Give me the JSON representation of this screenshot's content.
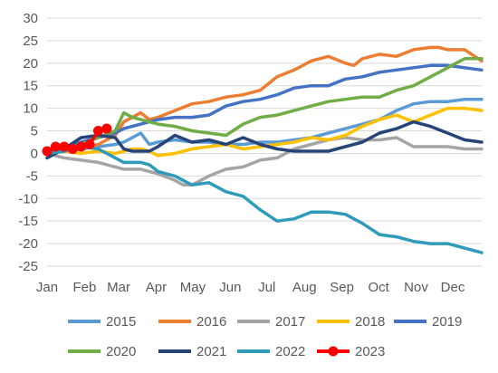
{
  "chart_data": {
    "type": "line",
    "title": "",
    "xlabel": "",
    "ylabel": "",
    "ylim": [
      -25,
      30
    ],
    "yticks": [
      -25,
      -20,
      -15,
      -10,
      -5,
      0,
      5,
      10,
      15,
      20,
      25,
      30
    ],
    "xlim": [
      1,
      52
    ],
    "xticks": [
      {
        "label": "Jan",
        "week": 1
      },
      {
        "label": "Feb",
        "week": 5.4
      },
      {
        "label": "Mar",
        "week": 9.4
      },
      {
        "label": "Apr",
        "week": 13.8
      },
      {
        "label": "May",
        "week": 18.1
      },
      {
        "label": "Jun",
        "week": 22.5
      },
      {
        "label": "Jul",
        "week": 26.8
      },
      {
        "label": "Aug",
        "week": 31.2
      },
      {
        "label": "Sep",
        "week": 35.6
      },
      {
        "label": "Oct",
        "week": 39.9
      },
      {
        "label": "Nov",
        "week": 44.3
      },
      {
        "label": "Dec",
        "week": 48.6
      }
    ],
    "grid": "horizontal",
    "legend_position": "bottom",
    "series": [
      {
        "name": "2015",
        "color": "#5B9BD5",
        "markers": false,
        "x": [
          1,
          3,
          5,
          7,
          9,
          10,
          11,
          12,
          13,
          14,
          16,
          18,
          20,
          22,
          24,
          26,
          28,
          30,
          32,
          34,
          36,
          38,
          40,
          42,
          44,
          46,
          48,
          50,
          52
        ],
        "y": [
          0,
          0.5,
          1,
          1.5,
          2,
          2.5,
          3.5,
          4.5,
          2,
          2.5,
          3,
          2.5,
          2.5,
          2,
          2,
          2.5,
          2.5,
          3,
          3.5,
          4.5,
          5.5,
          6.5,
          7.5,
          9.5,
          11,
          11.5,
          11.5,
          12,
          12
        ]
      },
      {
        "name": "2016",
        "color": "#ED7D31",
        "markers": false,
        "x": [
          1,
          3,
          5,
          7,
          9,
          10,
          11,
          12,
          13,
          14,
          16,
          18,
          20,
          22,
          24,
          26,
          28,
          30,
          32,
          34,
          36,
          37,
          38,
          40,
          42,
          44,
          46,
          47,
          48,
          50,
          52
        ],
        "y": [
          0,
          0.5,
          1,
          2,
          4,
          7,
          8,
          9,
          7.5,
          8,
          9.5,
          11,
          11.5,
          12.5,
          13,
          14,
          17,
          18.5,
          20.5,
          21.5,
          20,
          19.5,
          21,
          22,
          21.5,
          23,
          23.5,
          23.5,
          23,
          23,
          20.5
        ]
      },
      {
        "name": "2017",
        "color": "#A5A5A5",
        "markers": false,
        "x": [
          1,
          3,
          5,
          7,
          9,
          10,
          11,
          12,
          13,
          14,
          16,
          17,
          18,
          20,
          22,
          24,
          26,
          28,
          30,
          32,
          34,
          36,
          38,
          40,
          42,
          44,
          46,
          48,
          50,
          52
        ],
        "y": [
          0,
          -1,
          -1.5,
          -2,
          -3,
          -3.5,
          -3.5,
          -3.5,
          -4,
          -4.5,
          -6,
          -7,
          -7,
          -5,
          -3.5,
          -3,
          -1.5,
          -1,
          1,
          2,
          3,
          3.5,
          3,
          3,
          3.5,
          1.5,
          1.5,
          1.5,
          1,
          1
        ]
      },
      {
        "name": "2018",
        "color": "#FFC000",
        "markers": false,
        "x": [
          1,
          3,
          5,
          7,
          9,
          10,
          11,
          12,
          13,
          14,
          16,
          18,
          20,
          22,
          24,
          26,
          28,
          30,
          32,
          34,
          36,
          38,
          40,
          42,
          44,
          46,
          48,
          50,
          52
        ],
        "y": [
          0,
          0.5,
          0,
          0.5,
          0,
          0.5,
          1,
          1,
          0.5,
          -0.5,
          0,
          1,
          1.5,
          2,
          1,
          1.5,
          2,
          2.5,
          3.5,
          3,
          4,
          6,
          7.5,
          8.5,
          7,
          8.5,
          10,
          10,
          9.5
        ]
      },
      {
        "name": "2019",
        "color": "#4472C4",
        "markers": false,
        "x": [
          1,
          3,
          5,
          7,
          9,
          10,
          11,
          12,
          13,
          14,
          16,
          18,
          20,
          22,
          24,
          26,
          28,
          30,
          32,
          34,
          36,
          38,
          40,
          42,
          44,
          46,
          48,
          50,
          52
        ],
        "y": [
          0,
          1,
          2.5,
          3.5,
          4.5,
          5.5,
          6,
          6.5,
          7,
          7.5,
          8,
          8,
          8.5,
          10.5,
          11.5,
          12,
          13,
          14.5,
          15,
          15,
          16.5,
          17,
          18,
          18.5,
          19,
          19.5,
          19.5,
          19,
          18.5
        ]
      },
      {
        "name": "2020",
        "color": "#70AD47",
        "markers": false,
        "x": [
          1,
          3,
          5,
          7,
          9,
          10,
          11,
          12,
          13,
          14,
          16,
          18,
          20,
          22,
          24,
          26,
          28,
          30,
          32,
          34,
          36,
          38,
          40,
          42,
          44,
          46,
          48,
          50,
          52
        ],
        "y": [
          0,
          0.5,
          2,
          3.5,
          5,
          9,
          8,
          7.5,
          7,
          6.5,
          6,
          5,
          4.5,
          4,
          6.5,
          8,
          8.5,
          9.5,
          10.5,
          11.5,
          12,
          12.5,
          12.5,
          14,
          15,
          17,
          19,
          21,
          21
        ]
      },
      {
        "name": "2021",
        "color": "#264478",
        "markers": false,
        "x": [
          1,
          3,
          5,
          7,
          9,
          10,
          11,
          12,
          13,
          14,
          16,
          18,
          20,
          22,
          24,
          26,
          28,
          30,
          32,
          34,
          36,
          38,
          40,
          42,
          44,
          46,
          48,
          50,
          52
        ],
        "y": [
          -1,
          1,
          3.5,
          4,
          3.5,
          1,
          0.5,
          0.5,
          0.5,
          1.5,
          4,
          2.5,
          3,
          2,
          3.5,
          2,
          1,
          0.5,
          0.5,
          0.5,
          1.5,
          2.5,
          4.5,
          5.5,
          7,
          6,
          4.5,
          3,
          2.5
        ]
      },
      {
        "name": "2022",
        "color": "#2E9BB8",
        "markers": false,
        "x": [
          1,
          3,
          5,
          7,
          9,
          10,
          11,
          12,
          13,
          14,
          16,
          18,
          20,
          22,
          24,
          26,
          28,
          30,
          32,
          34,
          36,
          38,
          40,
          42,
          44,
          46,
          48,
          50,
          52
        ],
        "y": [
          0,
          0.5,
          1.5,
          1,
          -1,
          -2,
          -2,
          -2,
          -2.5,
          -4,
          -5,
          -7,
          -6.5,
          -8.5,
          -9.5,
          -12.5,
          -15,
          -14.5,
          -13,
          -13,
          -13.5,
          -15.5,
          -18,
          -18.5,
          -19.5,
          -20,
          -20,
          -21,
          -22
        ]
      },
      {
        "name": "2023",
        "color": "#FF0000",
        "markers": true,
        "x": [
          1,
          2,
          3,
          4,
          5,
          6,
          7,
          8
        ],
        "y": [
          0.5,
          1.5,
          1.5,
          1,
          1.5,
          2,
          5,
          5.5
        ]
      }
    ]
  }
}
